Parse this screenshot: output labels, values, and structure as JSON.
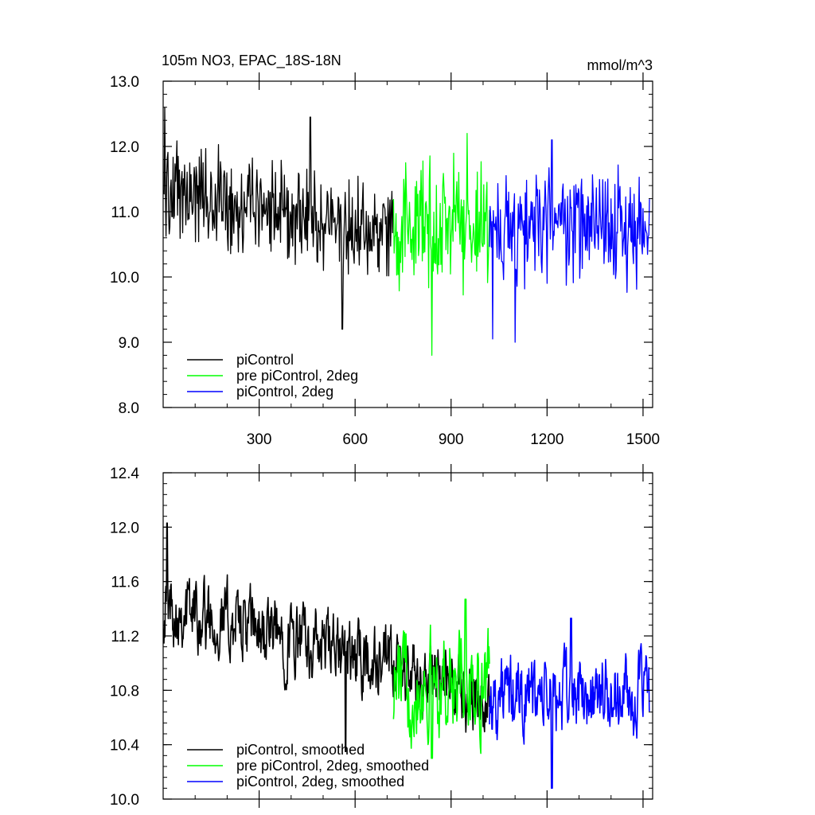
{
  "figure": {
    "title": "105m NO3, EPAC_18S-18N",
    "units": "mmol/m^3"
  },
  "colors": {
    "piControl": "#000000",
    "pre_piControl_2deg": "#00ff00",
    "piControl_2deg": "#0000ff"
  },
  "chart_data": [
    {
      "type": "line",
      "title": "105m NO3, EPAC_18S-18N",
      "units_label": "mmol/m^3",
      "xlabel": "",
      "ylabel": "",
      "xlim": [
        0,
        1530
      ],
      "ylim": [
        8.0,
        13.0
      ],
      "x_ticks": [
        300,
        600,
        900,
        1200,
        1500
      ],
      "x_tick_labels": [
        "300",
        "600",
        "900",
        "1200",
        "1500"
      ],
      "y_ticks": [
        8.0,
        9.0,
        10.0,
        11.0,
        12.0,
        13.0
      ],
      "y_tick_labels": [
        "8.0",
        "9.0",
        "10.0",
        "11.0",
        "12.0",
        "13.0"
      ],
      "legend_position": "bottom-left",
      "series": [
        {
          "name": "piControl",
          "color": "#000000",
          "x_start": 1,
          "x_end": 720,
          "trend_start": 11.35,
          "trend_end": 10.65,
          "amplitude": 0.75,
          "extremes": [
            {
              "x": 5,
              "y": 12.6
            },
            {
              "x": 560,
              "y": 9.2
            },
            {
              "x": 460,
              "y": 12.45
            }
          ]
        },
        {
          "name": "pre piControl, 2deg",
          "color": "#00ff00",
          "x_start": 720,
          "x_end": 1020,
          "trend_start": 10.8,
          "trend_end": 10.8,
          "amplitude": 0.95,
          "extremes": [
            {
              "x": 840,
              "y": 8.8
            },
            {
              "x": 950,
              "y": 12.2
            }
          ]
        },
        {
          "name": "piControl, 2deg",
          "color": "#0000ff",
          "x_start": 1020,
          "x_end": 1520,
          "trend_start": 10.75,
          "trend_end": 10.75,
          "amplitude": 0.85,
          "extremes": [
            {
              "x": 1030,
              "y": 9.05
            },
            {
              "x": 1215,
              "y": 12.1
            },
            {
              "x": 1100,
              "y": 9.0
            }
          ]
        }
      ]
    },
    {
      "type": "line",
      "title": "",
      "xlabel": "",
      "ylabel": "",
      "xlim": [
        0,
        1530
      ],
      "ylim": [
        10.0,
        12.4
      ],
      "x_ticks": [
        300,
        600,
        900,
        1200,
        1500
      ],
      "x_tick_labels": [],
      "y_ticks": [
        10.0,
        10.4,
        10.8,
        11.2,
        11.6,
        12.0,
        12.4
      ],
      "y_tick_labels": [
        "10.0",
        "10.4",
        "10.8",
        "11.2",
        "11.6",
        "12.0",
        "12.4"
      ],
      "legend_position": "bottom-left",
      "series": [
        {
          "name": "piControl, smoothed",
          "color": "#000000",
          "x_start": 1,
          "x_end": 1020,
          "trend_start": 11.45,
          "trend_end": 10.75,
          "amplitude": 0.28,
          "extremes": [
            {
              "x": 12,
              "y": 12.03
            },
            {
              "x": 570,
              "y": 10.35
            }
          ]
        },
        {
          "name": "pre piControl, 2deg, smoothed",
          "color": "#00ff00",
          "x_start": 720,
          "x_end": 1020,
          "trend_start": 10.85,
          "trend_end": 10.85,
          "amplitude": 0.38,
          "extremes": [
            {
              "x": 945,
              "y": 11.47
            },
            {
              "x": 840,
              "y": 10.3
            }
          ]
        },
        {
          "name": "piControl, 2deg, smoothed",
          "color": "#0000ff",
          "x_start": 1020,
          "x_end": 1520,
          "trend_start": 10.75,
          "trend_end": 10.75,
          "amplitude": 0.3,
          "extremes": [
            {
              "x": 1275,
              "y": 11.33
            },
            {
              "x": 1215,
              "y": 10.08
            }
          ]
        }
      ]
    }
  ]
}
